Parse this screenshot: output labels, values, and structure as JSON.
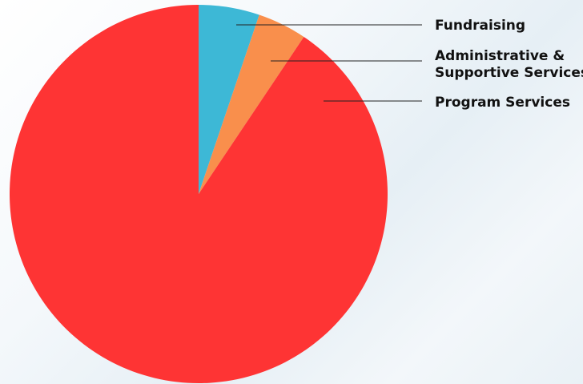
{
  "chart_data": {
    "type": "pie",
    "start_angle_deg": 0,
    "direction": "clockwise",
    "slices": [
      {
        "label": "Fundraising",
        "label_lines": [
          "Fundraising"
        ],
        "value": 5.2,
        "color": "#3db8d6"
      },
      {
        "label": "Administrative & Supportive Services",
        "label_lines": [
          "Administrative &",
          "Supportive Services"
        ],
        "value": 4.2,
        "color": "#f98f4c"
      },
      {
        "label": "Program Services",
        "label_lines": [
          "Program Services"
        ],
        "value": 90.6,
        "color": "#fe3434"
      }
    ],
    "legend": "right-with-leader-lines"
  }
}
